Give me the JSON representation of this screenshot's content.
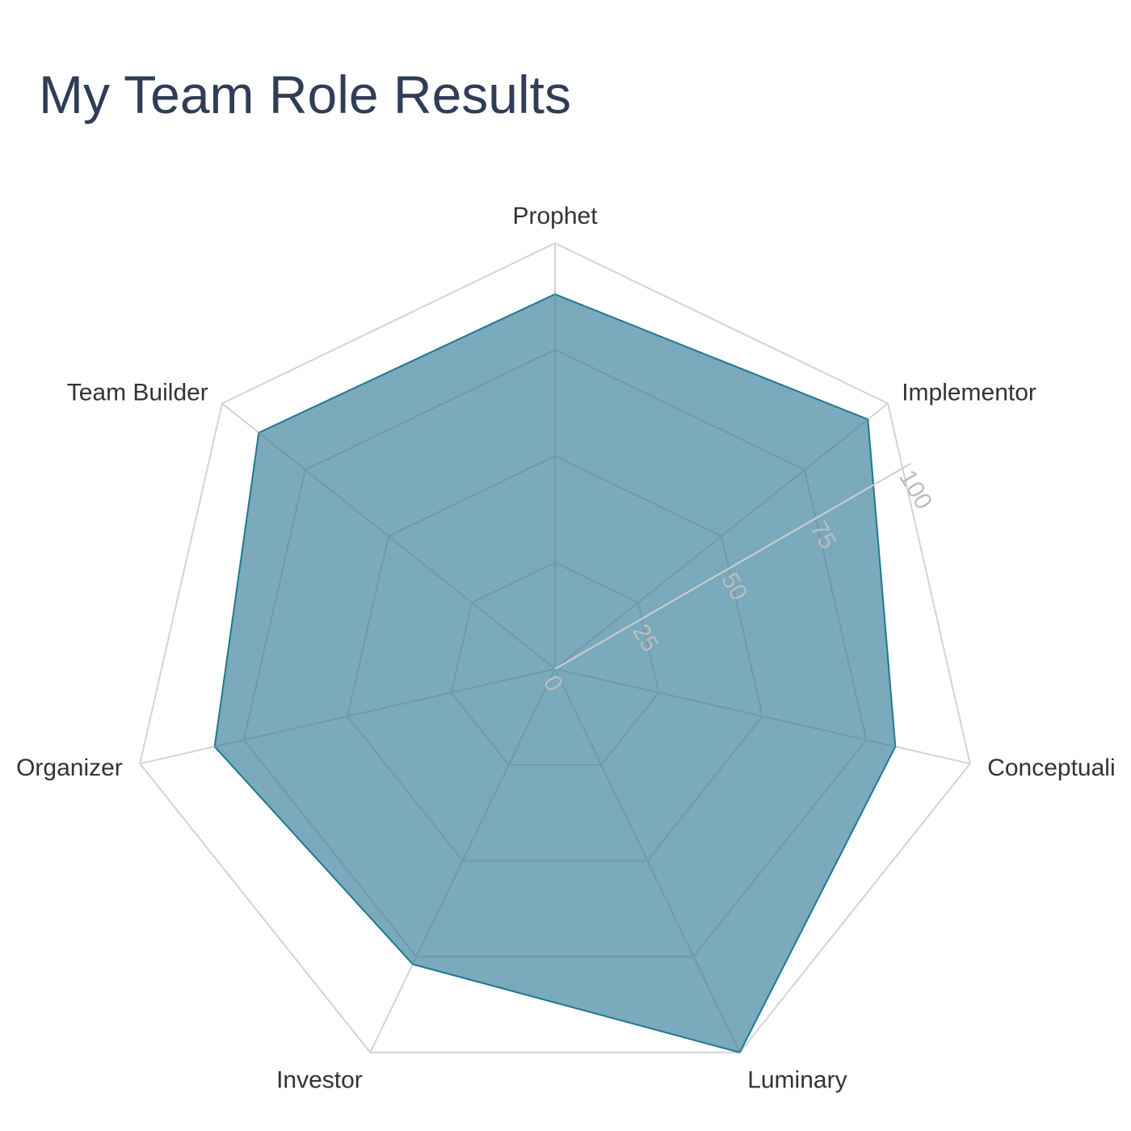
{
  "page": {
    "title": "My Team Role Results"
  },
  "chart_data": {
    "type": "radar",
    "title": "My Team Role Results",
    "categories": [
      "Prophet",
      "Implementor",
      "Conceptualizer",
      "Luminary",
      "Investor",
      "Organizer",
      "Team Builder"
    ],
    "category_labels_visible": [
      "Prophet",
      "Implementor",
      "Conceptuali",
      "Luminary",
      "Investor",
      "Organizer",
      "Team Builder"
    ],
    "series": [
      {
        "values": [
          88,
          94,
          82,
          100,
          77,
          82,
          89
        ]
      }
    ],
    "r_range": [
      0,
      100
    ],
    "r_ticks": [
      0,
      25,
      50,
      75,
      100
    ],
    "r_tick_labels": [
      "0",
      "25",
      "50",
      "75",
      "100"
    ],
    "grid": true,
    "legend": "none",
    "colors": {
      "fill": "#7aaabb",
      "stroke": "#1e7893",
      "grid_outer": "#d3d3d3",
      "grid_inner": "#6f9aaa"
    }
  }
}
